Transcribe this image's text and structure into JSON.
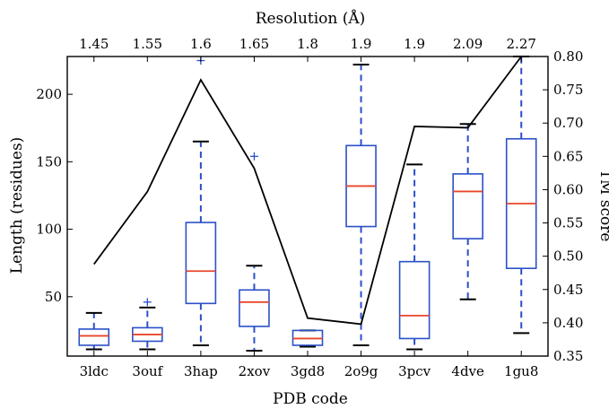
{
  "chart_data": {
    "type": "box",
    "categories": [
      "3ldc",
      "3ouf",
      "3hap",
      "2xov",
      "3gd8",
      "2o9g",
      "3pcv",
      "4dve",
      "1gu8"
    ],
    "top_tick_labels": [
      "1.45",
      "1.55",
      "1.6",
      "1.65",
      "1.8",
      "1.9",
      "1.9",
      "2.09",
      "2.27"
    ],
    "xlabel": "PDB code",
    "top_xlabel": "Resolution (Å)",
    "ylabel": "Length (residues)",
    "right_ylabel": "TM score",
    "ylim": [
      6,
      228
    ],
    "y_ticks": [
      50,
      100,
      150,
      200
    ],
    "right_ylim": [
      0.35,
      0.8
    ],
    "right_ticks": [
      0.35,
      0.4,
      0.45,
      0.5,
      0.55,
      0.6,
      0.65,
      0.7,
      0.75,
      0.8
    ],
    "right_tick_labels": [
      "0.35",
      "0.40",
      "0.45",
      "0.50",
      "0.55",
      "0.60",
      "0.65",
      "0.70",
      "0.75",
      "0.80"
    ],
    "boxes": [
      {
        "whislo": 11,
        "q1": 14,
        "med": 21,
        "q3": 26,
        "whishi": 38,
        "fliers": []
      },
      {
        "whislo": 11,
        "q1": 17,
        "med": 22,
        "q3": 27,
        "whishi": 42,
        "fliers": [
          46
        ]
      },
      {
        "whislo": 14,
        "q1": 45,
        "med": 69,
        "q3": 105,
        "whishi": 165,
        "fliers": [
          225
        ]
      },
      {
        "whislo": 10,
        "q1": 28,
        "med": 46,
        "q3": 55,
        "whishi": 73,
        "fliers": [
          154
        ]
      },
      {
        "whislo": 13,
        "q1": 14,
        "med": 19,
        "q3": 25,
        "whishi": 25,
        "fliers": []
      },
      {
        "whislo": 14,
        "q1": 102,
        "med": 132,
        "q3": 162,
        "whishi": 222,
        "fliers": []
      },
      {
        "whislo": 11,
        "q1": 19,
        "med": 36,
        "q3": 76,
        "whishi": 148,
        "fliers": []
      },
      {
        "whislo": 48,
        "q1": 93,
        "med": 128,
        "q3": 141,
        "whishi": 178,
        "fliers": []
      },
      {
        "whislo": 23,
        "q1": 71,
        "med": 119,
        "q3": 167,
        "whishi": 228,
        "fliers": []
      }
    ],
    "tm_score": {
      "values": [
        0.488,
        0.597,
        0.765,
        0.632,
        0.407,
        0.398,
        0.695,
        0.693,
        0.8
      ],
      "color": "#000000"
    },
    "colors": {
      "box": "#2b50c8",
      "median": "#e8462a",
      "whisker": "#2b50c8",
      "cap": "#000000",
      "flier": "#2b50c8",
      "frame": "#000000"
    }
  }
}
